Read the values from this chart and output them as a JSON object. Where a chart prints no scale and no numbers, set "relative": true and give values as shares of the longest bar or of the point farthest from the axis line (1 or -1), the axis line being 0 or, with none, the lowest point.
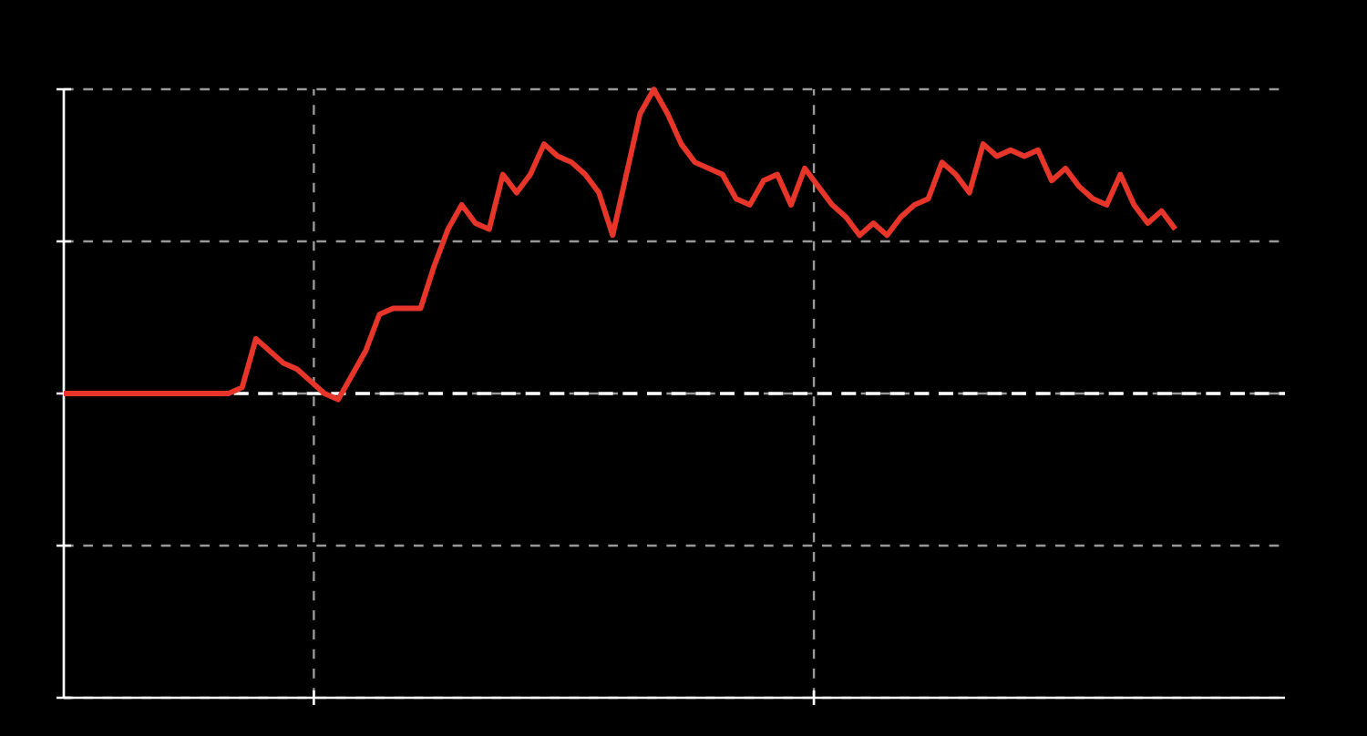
{
  "chart_data": {
    "type": "line",
    "relative": true,
    "grid": true,
    "categories": [
      null,
      null,
      null,
      null,
      null,
      null,
      null,
      null,
      null,
      null,
      null,
      null,
      null,
      null,
      null,
      null,
      null,
      null,
      null,
      null,
      null,
      null,
      null,
      null,
      null,
      null,
      null,
      null,
      null,
      null,
      null,
      null,
      null,
      null,
      null,
      null,
      null,
      null,
      null,
      null,
      null,
      null,
      null,
      null,
      null,
      null,
      null,
      null,
      null,
      null,
      null,
      null,
      null,
      null,
      null,
      null,
      null,
      null,
      null,
      null,
      null,
      null,
      null,
      null,
      null,
      null,
      null,
      null,
      null,
      null,
      null,
      null,
      null,
      null,
      null,
      null,
      null,
      null,
      null,
      null,
      null,
      null
    ],
    "series": [
      {
        "color": "#e8352a",
        "values": [
          0.5,
          0.5,
          0.5,
          0.5,
          0.5,
          0.5,
          0.5,
          0.5,
          0.5,
          0.5,
          0.5,
          0.5,
          0.5,
          0.51,
          0.59,
          0.57,
          0.55,
          0.54,
          0.52,
          0.5,
          0.49,
          0.53,
          0.57,
          0.63,
          0.64,
          0.64,
          0.64,
          0.71,
          0.77,
          0.81,
          0.78,
          0.77,
          0.86,
          0.83,
          0.86,
          0.91,
          0.89,
          0.88,
          0.86,
          0.83,
          0.76,
          0.86,
          0.96,
          1,
          0.96,
          0.91,
          0.88,
          0.87,
          0.86,
          0.82,
          0.81,
          0.85,
          0.86,
          0.81,
          0.87,
          0.84,
          0.81,
          0.79,
          0.76,
          0.78,
          0.76,
          0.79,
          0.81,
          0.82,
          0.88,
          0.86,
          0.83,
          0.91,
          0.89,
          0.9,
          0.89,
          0.9,
          0.85,
          0.87,
          0.84,
          0.82,
          0.81,
          0.86,
          0.81,
          0.78,
          0.8,
          0.77
        ]
      }
    ],
    "ref_lines": [
      {
        "axis": "y",
        "value": 0.5,
        "color": "#ffffff",
        "line_style": "dashed"
      }
    ]
  }
}
